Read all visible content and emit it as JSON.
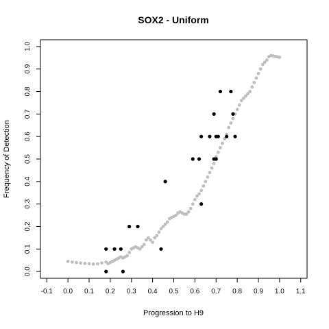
{
  "chart_data": {
    "type": "scatter",
    "title": "SOX2 - Uniform",
    "xlabel": "Progression to H9",
    "ylabel": "Frequency of Detection",
    "xlim": [
      -0.13,
      1.13
    ],
    "ylim": [
      -0.03,
      1.03
    ],
    "x_ticks": [
      "-0.1",
      "0.0",
      "0.1",
      "0.2",
      "0.3",
      "0.4",
      "0.5",
      "0.6",
      "0.7",
      "0.8",
      "0.9",
      "1.0",
      "1.1"
    ],
    "y_ticks": [
      "0.0",
      "0.1",
      "0.2",
      "0.3",
      "0.4",
      "0.5",
      "0.6",
      "0.7",
      "0.8",
      "0.9",
      "1.0"
    ],
    "grid": false,
    "series": [
      {
        "color": "#bebebe",
        "marker": "circle",
        "points": [
          [
            0.0,
            0.045
          ],
          [
            0.02,
            0.042
          ],
          [
            0.04,
            0.04
          ],
          [
            0.06,
            0.038
          ],
          [
            0.08,
            0.036
          ],
          [
            0.1,
            0.035
          ],
          [
            0.12,
            0.033
          ],
          [
            0.14,
            0.034
          ],
          [
            0.16,
            0.038
          ],
          [
            0.18,
            0.042
          ],
          [
            0.19,
            0.035
          ],
          [
            0.2,
            0.04
          ],
          [
            0.21,
            0.045
          ],
          [
            0.22,
            0.05
          ],
          [
            0.23,
            0.055
          ],
          [
            0.24,
            0.06
          ],
          [
            0.25,
            0.065
          ],
          [
            0.26,
            0.06
          ],
          [
            0.27,
            0.065
          ],
          [
            0.28,
            0.07
          ],
          [
            0.29,
            0.085
          ],
          [
            0.3,
            0.1
          ],
          [
            0.31,
            0.105
          ],
          [
            0.32,
            0.11
          ],
          [
            0.33,
            0.105
          ],
          [
            0.34,
            0.1
          ],
          [
            0.35,
            0.11
          ],
          [
            0.36,
            0.12
          ],
          [
            0.37,
            0.14
          ],
          [
            0.38,
            0.15
          ],
          [
            0.39,
            0.14
          ],
          [
            0.4,
            0.13
          ],
          [
            0.41,
            0.15
          ],
          [
            0.42,
            0.16
          ],
          [
            0.43,
            0.175
          ],
          [
            0.44,
            0.19
          ],
          [
            0.45,
            0.2
          ],
          [
            0.46,
            0.21
          ],
          [
            0.47,
            0.22
          ],
          [
            0.48,
            0.235
          ],
          [
            0.49,
            0.24
          ],
          [
            0.5,
            0.245
          ],
          [
            0.51,
            0.25
          ],
          [
            0.52,
            0.26
          ],
          [
            0.53,
            0.265
          ],
          [
            0.54,
            0.26
          ],
          [
            0.55,
            0.255
          ],
          [
            0.56,
            0.255
          ],
          [
            0.57,
            0.265
          ],
          [
            0.58,
            0.28
          ],
          [
            0.59,
            0.3
          ],
          [
            0.6,
            0.32
          ],
          [
            0.61,
            0.335
          ],
          [
            0.62,
            0.345
          ],
          [
            0.63,
            0.36
          ],
          [
            0.64,
            0.38
          ],
          [
            0.65,
            0.4
          ],
          [
            0.66,
            0.42
          ],
          [
            0.67,
            0.44
          ],
          [
            0.68,
            0.46
          ],
          [
            0.69,
            0.48
          ],
          [
            0.7,
            0.51
          ],
          [
            0.71,
            0.53
          ],
          [
            0.72,
            0.55
          ],
          [
            0.73,
            0.57
          ],
          [
            0.74,
            0.59
          ],
          [
            0.75,
            0.61
          ],
          [
            0.76,
            0.64
          ],
          [
            0.77,
            0.66
          ],
          [
            0.78,
            0.68
          ],
          [
            0.79,
            0.7
          ],
          [
            0.8,
            0.72
          ],
          [
            0.81,
            0.74
          ],
          [
            0.82,
            0.76
          ],
          [
            0.83,
            0.77
          ],
          [
            0.84,
            0.78
          ],
          [
            0.85,
            0.79
          ],
          [
            0.86,
            0.8
          ],
          [
            0.87,
            0.82
          ],
          [
            0.88,
            0.84
          ],
          [
            0.89,
            0.86
          ],
          [
            0.9,
            0.88
          ],
          [
            0.91,
            0.9
          ],
          [
            0.92,
            0.92
          ],
          [
            0.93,
            0.93
          ],
          [
            0.94,
            0.94
          ],
          [
            0.95,
            0.955
          ],
          [
            0.96,
            0.96
          ],
          [
            0.97,
            0.958
          ],
          [
            0.98,
            0.956
          ],
          [
            0.99,
            0.954
          ],
          [
            1.0,
            0.952
          ]
        ]
      },
      {
        "color": "#000000",
        "marker": "circle",
        "points": [
          [
            0.18,
            0.1
          ],
          [
            0.18,
            0.0
          ],
          [
            0.22,
            0.1
          ],
          [
            0.25,
            0.1
          ],
          [
            0.26,
            0.0
          ],
          [
            0.29,
            0.2
          ],
          [
            0.33,
            0.2
          ],
          [
            0.44,
            0.1
          ],
          [
            0.46,
            0.4
          ],
          [
            0.59,
            0.5
          ],
          [
            0.62,
            0.5
          ],
          [
            0.63,
            0.6
          ],
          [
            0.63,
            0.3
          ],
          [
            0.67,
            0.6
          ],
          [
            0.69,
            0.7
          ],
          [
            0.69,
            0.5
          ],
          [
            0.7,
            0.6
          ],
          [
            0.7,
            0.5
          ],
          [
            0.71,
            0.6
          ],
          [
            0.72,
            0.8
          ],
          [
            0.75,
            0.6
          ],
          [
            0.77,
            0.8
          ],
          [
            0.78,
            0.7
          ],
          [
            0.79,
            0.6
          ]
        ]
      }
    ]
  }
}
